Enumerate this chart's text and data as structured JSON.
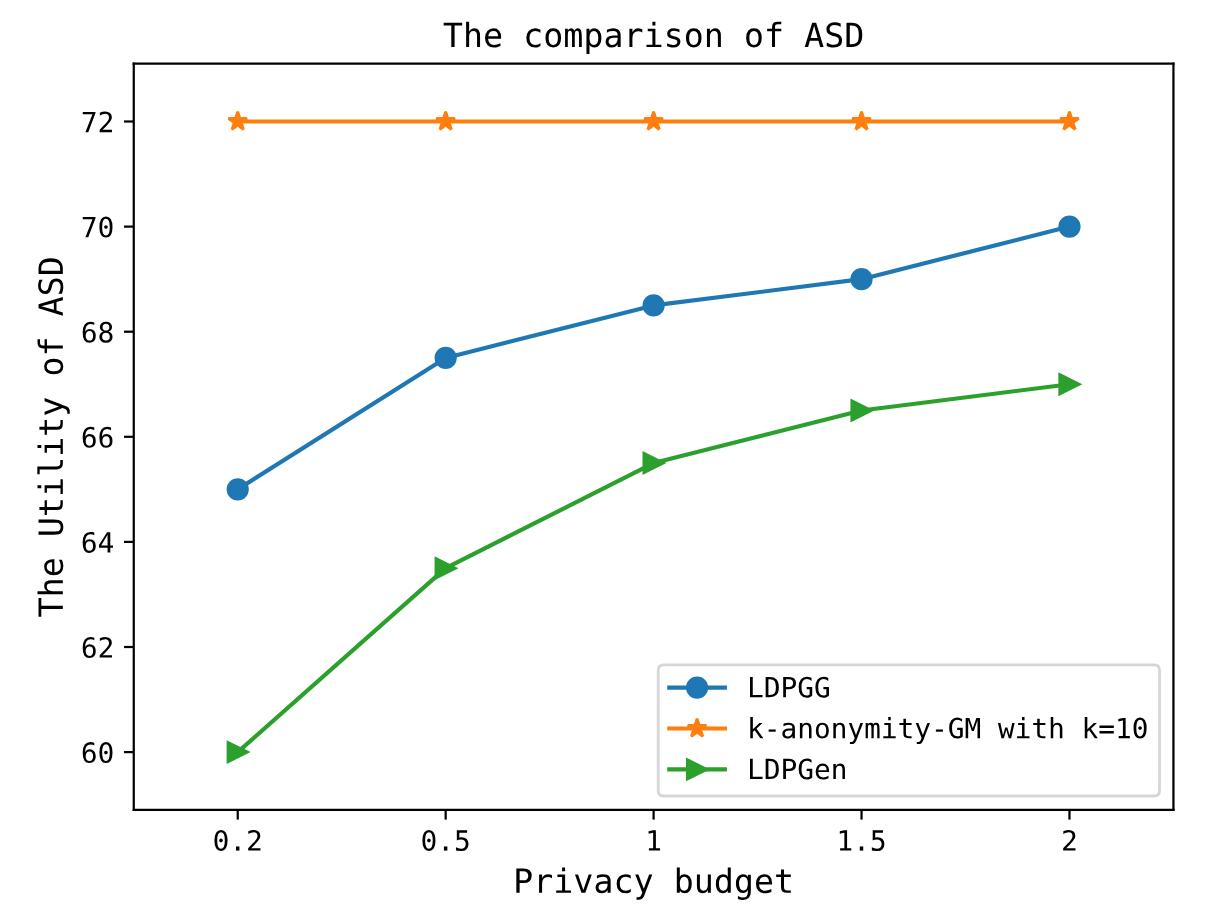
{
  "chart_data": {
    "type": "line",
    "title": "The comparison of ASD",
    "xlabel": "Privacy budget",
    "ylabel": "The Utility of ASD",
    "categories": [
      "0.2",
      "0.5",
      "1",
      "1.5",
      "2"
    ],
    "series": [
      {
        "name": "LDPGG",
        "color": "#1f77b4",
        "marker": "circle",
        "values": [
          65,
          67.5,
          68.5,
          69,
          70
        ]
      },
      {
        "name": "k-anonymity-GM with k=10",
        "color": "#ff7f0e",
        "marker": "star",
        "values": [
          72,
          72,
          72,
          72,
          72
        ]
      },
      {
        "name": "LDPGen",
        "color": "#2ca02c",
        "marker": "triangle",
        "values": [
          60,
          63.5,
          65.5,
          66.5,
          67
        ]
      }
    ],
    "ylim": [
      58.9,
      73.1
    ],
    "yticks": [
      60,
      62,
      64,
      66,
      68,
      70,
      72
    ],
    "grid": false,
    "legend": "bottom right"
  }
}
